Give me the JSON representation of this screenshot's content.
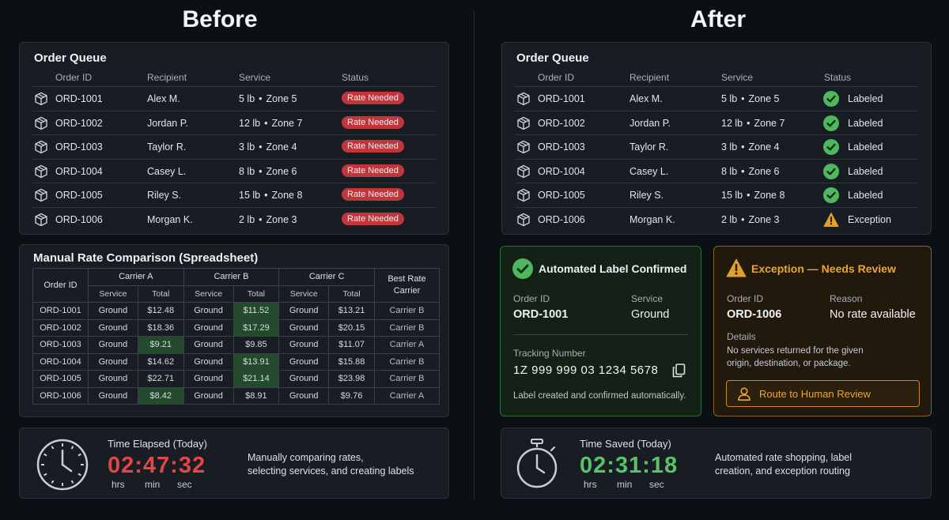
{
  "headings": {
    "before": "Before",
    "after": "After"
  },
  "order_queue": {
    "title": "Order Queue",
    "columns": [
      "Order ID",
      "Recipient",
      "Service",
      "Status"
    ],
    "rows": [
      {
        "id": "ORD-1001",
        "recipient": "Alex M.",
        "weight": "5 lb",
        "zone": "Zone 5",
        "before_status": "Rate Needed",
        "after_status": "Labeled"
      },
      {
        "id": "ORD-1002",
        "recipient": "Jordan P.",
        "weight": "12 lb",
        "zone": "Zone 7",
        "before_status": "Rate Needed",
        "after_status": "Labeled"
      },
      {
        "id": "ORD-1003",
        "recipient": "Taylor R.",
        "weight": "3 lb",
        "zone": "Zone 4",
        "before_status": "Rate Needed",
        "after_status": "Labeled"
      },
      {
        "id": "ORD-1004",
        "recipient": "Casey L.",
        "weight": "8 lb",
        "zone": "Zone 6",
        "before_status": "Rate Needed",
        "after_status": "Labeled"
      },
      {
        "id": "ORD-1005",
        "recipient": "Riley S.",
        "weight": "15 lb",
        "zone": "Zone 8",
        "before_status": "Rate Needed",
        "after_status": "Labeled"
      },
      {
        "id": "ORD-1006",
        "recipient": "Morgan K.",
        "weight": "2 lb",
        "zone": "Zone 3",
        "before_status": "Rate Needed",
        "after_status": "Exception"
      }
    ],
    "separator": "•"
  },
  "spreadsheet": {
    "title": "Manual Rate Comparison (Spreadsheet)",
    "order_id_header": "Order ID",
    "carriers": [
      "Carrier A",
      "Carrier B",
      "Carrier C"
    ],
    "sub_headers": [
      "Service",
      "Total"
    ],
    "best_header_1": "Best Rate",
    "best_header_2": "Carrier",
    "rows": [
      {
        "id": "ORD-1001",
        "a": [
          "Ground",
          "$12.48"
        ],
        "b": [
          "Ground",
          "$11.52"
        ],
        "c": [
          "Ground",
          "$13.21"
        ],
        "best": "Carrier B",
        "hl": "b"
      },
      {
        "id": "ORD-1002",
        "a": [
          "Ground",
          "$18.36"
        ],
        "b": [
          "Ground",
          "$17.29"
        ],
        "c": [
          "Ground",
          "$20.15"
        ],
        "best": "Carrier B",
        "hl": "b"
      },
      {
        "id": "ORD-1003",
        "a": [
          "Ground",
          "$9.21"
        ],
        "b": [
          "Ground",
          "$9.85"
        ],
        "c": [
          "Ground",
          "$11.07"
        ],
        "best": "Carrier A",
        "hl": "a"
      },
      {
        "id": "ORD-1004",
        "a": [
          "Ground",
          "$14.62"
        ],
        "b": [
          "Ground",
          "$13.91"
        ],
        "c": [
          "Ground",
          "$15.88"
        ],
        "best": "Carrier B",
        "hl": "b"
      },
      {
        "id": "ORD-1005",
        "a": [
          "Ground",
          "$22.71"
        ],
        "b": [
          "Ground",
          "$21.14"
        ],
        "c": [
          "Ground",
          "$23.98"
        ],
        "best": "Carrier B",
        "hl": "b"
      },
      {
        "id": "ORD-1006",
        "a": [
          "Ground",
          "$8.42"
        ],
        "b": [
          "Ground",
          "$8.91"
        ],
        "c": [
          "Ground",
          "$9.76"
        ],
        "best": "Carrier A",
        "hl": "a"
      }
    ]
  },
  "time_before": {
    "label": "Time Elapsed (Today)",
    "value": "02:47:32",
    "units": [
      "hrs",
      "min",
      "sec"
    ],
    "desc_1": "Manually comparing rates,",
    "desc_2": "selecting services, and creating labels",
    "color": "#e04848"
  },
  "time_after": {
    "label": "Time Saved (Today)",
    "value": "02:31:18",
    "units": [
      "hrs",
      "min",
      "sec"
    ],
    "desc_1": "Automated rate shopping, label",
    "desc_2": "creation, and exception routing",
    "color": "#58c46a"
  },
  "confirmed_card": {
    "title": "Automated Label Confirmed",
    "order_id_label": "Order ID",
    "order_id": "ORD-1001",
    "service_label": "Service",
    "service": "Ground",
    "tracking_label": "Tracking Number",
    "tracking": "1Z 999 999 03 1234 5678",
    "note": "Label created and confirmed automatically."
  },
  "exception_card": {
    "title": "Exception — Needs Review",
    "order_id_label": "Order ID",
    "order_id": "ORD-1006",
    "reason_label": "Reason",
    "reason": "No rate available",
    "details_label": "Details",
    "details_1": "No services returned for the given",
    "details_2": "origin, destination, or package.",
    "button": "Route to Human Review"
  },
  "colors": {
    "green": "#4fb85f",
    "amber": "#e0a02e",
    "red_badge": "#c1353b"
  }
}
